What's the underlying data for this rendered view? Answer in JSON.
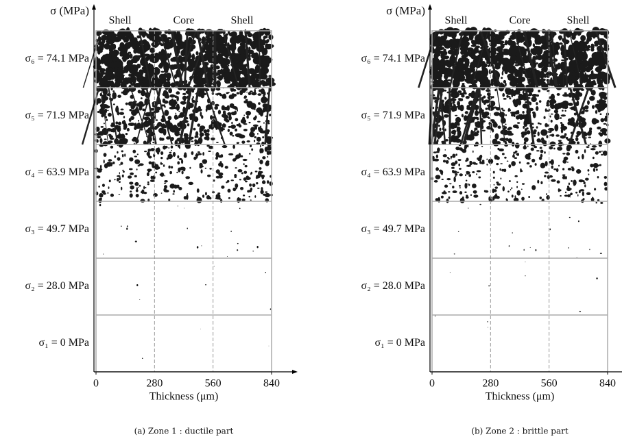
{
  "panels": [
    {
      "y_axis_label": "σ (MPa)",
      "column_labels": [
        "Shell",
        "Core",
        "Shell"
      ],
      "rows": [
        "σ₆ = 74.1 MPa",
        "σ₅ = 71.9 MPa",
        "σ₄ = 63.9 MPa",
        "σ₃ = 49.7 MPa",
        "σ₂ = 28.0 MPa",
        "σ₁ = 0 MPa"
      ],
      "xlim": [
        0,
        840
      ],
      "xticks": [
        0,
        280,
        560,
        840
      ],
      "x_axis_label": "Thickness (μm)",
      "caption": "(a) Zone 1 : ductile part"
    },
    {
      "y_axis_label": "σ (MPa)",
      "column_labels": [
        "Shell",
        "Core",
        "Shell"
      ],
      "rows": [
        "σ₆ = 74.1 MPa",
        "σ₅ = 71.9 MPa",
        "σ₄ = 63.9 MPa",
        "σ₃ = 49.7 MPa",
        "σ₂ = 28.0 MPa",
        "σ₁ = 0 MPa"
      ],
      "xlim": [
        0,
        840
      ],
      "xticks": [
        0,
        280,
        560,
        840
      ],
      "x_axis_label": "Thickness (μm)",
      "caption": "(b) Zone 2 : brittle part"
    }
  ]
}
